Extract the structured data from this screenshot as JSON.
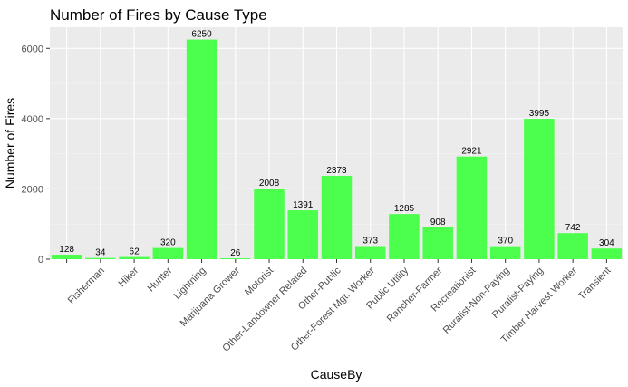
{
  "chart_data": {
    "type": "bar",
    "title": "Number of Fires by Cause Type",
    "xlabel": "CauseBy",
    "ylabel": "Number of Fires",
    "categories": [
      "",
      "Fisherman",
      "Hiker",
      "Hunter",
      "Lightning",
      "Marijuana Grower",
      "Motorist",
      "Other-Landowner Related",
      "Other-Public",
      "Other-Forest Mgt. Worker",
      "Public Utility",
      "Rancher-Farmer",
      "Recreationist",
      "Ruralist-Non-Paying",
      "Ruralist-Paying",
      "Timber Harvest Worker",
      "Transient"
    ],
    "values": [
      128,
      34,
      62,
      320,
      6250,
      26,
      2008,
      1391,
      2373,
      373,
      1285,
      908,
      2921,
      370,
      3995,
      742,
      304
    ],
    "data_labels": [
      "128",
      "34",
      "62",
      "320",
      "6250",
      "26",
      "2008",
      "1391",
      "2373",
      "373",
      "1285",
      "908",
      "2921",
      "370",
      "3995",
      "742",
      "304"
    ],
    "ylim": [
      0,
      6600
    ],
    "yticks": [
      0,
      2000,
      4000,
      6000
    ],
    "ytick_labels": [
      "0",
      "2000",
      "4000",
      "6000"
    ],
    "grid": true,
    "legend": "none",
    "colors": {
      "bar": "#4cff4c",
      "panel": "#ebebeb",
      "grid_major": "#ffffff",
      "grid_minor": "#f5f5f5",
      "tick_text": "#4d4d4d"
    }
  }
}
